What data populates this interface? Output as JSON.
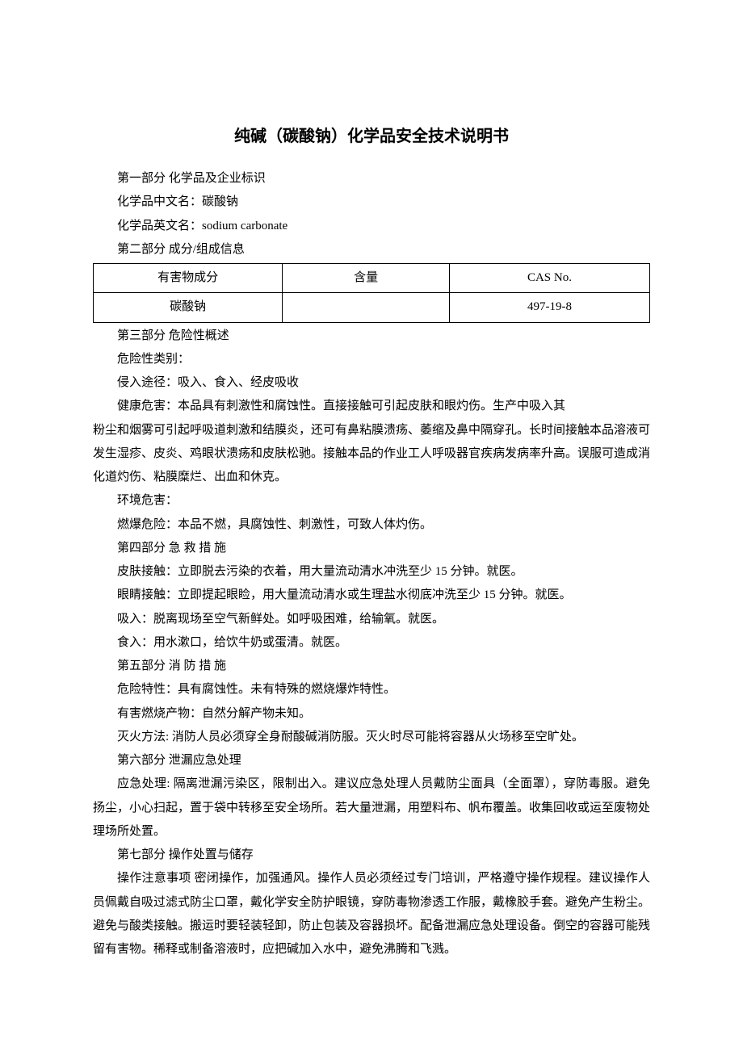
{
  "title": "纯碱（碳酸钠）化学品安全技术说明书",
  "section1": {
    "header": "第一部分  化学品及企业标识",
    "cn_name_label": "化学品中文名：碳酸钠",
    "en_name_label": "化学品英文名：sodium carbonate"
  },
  "section2": {
    "header": "第二部分  成分/组成信息",
    "table": {
      "columns": [
        "有害物成分",
        "含量",
        "CAS No."
      ],
      "rows": [
        [
          "碳酸钠",
          "",
          "497-19-8"
        ]
      ]
    }
  },
  "section3": {
    "header": "第三部分  危险性概述",
    "category": "危险性类别：",
    "route": "侵入途径：吸入、食入、经皮吸收",
    "health1": "健康危害：本品具有刺激性和腐蚀性。直接接触可引起皮肤和眼灼伤。生产中吸入其",
    "health2": "粉尘和烟雾可引起呼吸道刺激和结膜炎，还可有鼻粘膜溃疡、萎缩及鼻中隔穿孔。长时间接触本品溶液可发生湿疹、皮炎、鸡眼状溃疡和皮肤松驰。接触本品的作业工人呼吸器官疾病发病率升高。误服可造成消化道灼伤、粘膜糜烂、出血和休克。",
    "env": "环境危害：",
    "explosion": "燃爆危险：本品不燃，具腐蚀性、刺激性，可致人体灼伤。"
  },
  "section4": {
    "header": "第四部分  急 救 措 施",
    "skin": "皮肤接触：立即脱去污染的衣着，用大量流动清水冲洗至少 15 分钟。就医。",
    "eye": "眼睛接触：立即提起眼睑，用大量流动清水或生理盐水彻底冲洗至少 15 分钟。就医。",
    "inhale": "吸入：脱离现场至空气新鲜处。如呼吸困难，给输氧。就医。",
    "ingest": "食入：用水漱口，给饮牛奶或蛋清。就医。"
  },
  "section5": {
    "header": "第五部分  消 防 措 施",
    "hazard": "危险特性：具有腐蚀性。未有特殊的燃烧爆炸特性。",
    "combustion": "有害燃烧产物：自然分解产物未知。",
    "extinguish": "灭火方法: 消防人员必须穿全身耐酸碱消防服。灭火时尽可能将容器从火场移至空旷处。"
  },
  "section6": {
    "header": "第六部分  泄漏应急处理",
    "body": "应急处理: 隔离泄漏污染区，限制出入。建议应急处理人员戴防尘面具（全面罩），穿防毒服。避免扬尘，小心扫起，置于袋中转移至安全场所。若大量泄漏，用塑料布、帆布覆盖。收集回收或运至废物处理场所处置。"
  },
  "section7": {
    "header": "第七部分  操作处置与储存",
    "body": "操作注意事项  密闭操作，加强通风。操作人员必须经过专门培训，严格遵守操作规程。建议操作人员佩戴自吸过滤式防尘口罩，戴化学安全防护眼镜，穿防毒物渗透工作服，戴橡胶手套。避免产生粉尘。避免与酸类接触。搬运时要轻装轻卸，防止包装及容器损坏。配备泄漏应急处理设备。倒空的容器可能残留有害物。稀释或制备溶液时，应把碱加入水中，避免沸腾和飞溅。"
  }
}
